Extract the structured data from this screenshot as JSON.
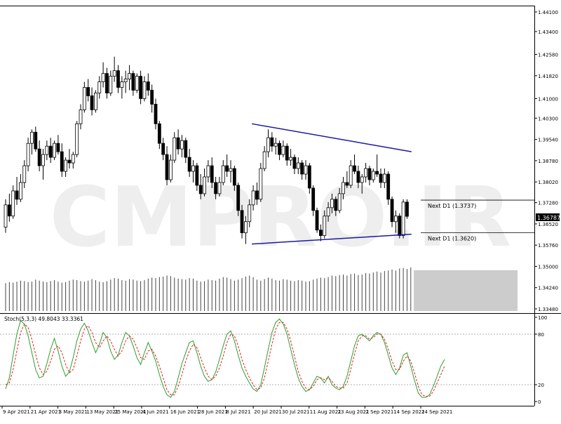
{
  "watermark": "CMPRO.IR",
  "chart_data": [
    {
      "type": "candlestick",
      "panel": "price",
      "ylim": [
        1.3376,
        1.4441
      ],
      "y_ticks": [
        "1.44100",
        "1.43400",
        "1.42580",
        "1.41820",
        "1.41000",
        "1.40300",
        "1.39540",
        "1.38780",
        "1.38020",
        "1.37280",
        "1.36520",
        "1.35760",
        "1.35000",
        "1.34240",
        "1.33480"
      ],
      "current_price_label": "1.36787",
      "annotations": [
        {
          "label": "Next D1 (1.3737)",
          "price": 1.3737
        },
        {
          "label": "Next D1 (1.3620)",
          "price": 1.362
        }
      ],
      "trendlines": [
        {
          "from": [
            "2021-07-15",
            1.401
          ],
          "to": [
            "2021-09-22",
            1.391
          ]
        },
        {
          "from": [
            "2021-07-15",
            1.358
          ],
          "to": [
            "2021-09-22",
            1.3615
          ]
        }
      ],
      "candles": [
        {
          "o": 1.364,
          "h": 1.374,
          "l": 1.362,
          "c": 1.372
        },
        {
          "o": 1.372,
          "h": 1.376,
          "l": 1.366,
          "c": 1.368
        },
        {
          "o": 1.368,
          "h": 1.379,
          "l": 1.367,
          "c": 1.377
        },
        {
          "o": 1.377,
          "h": 1.382,
          "l": 1.372,
          "c": 1.374
        },
        {
          "o": 1.374,
          "h": 1.383,
          "l": 1.373,
          "c": 1.38
        },
        {
          "o": 1.38,
          "h": 1.388,
          "l": 1.378,
          "c": 1.386
        },
        {
          "o": 1.386,
          "h": 1.396,
          "l": 1.384,
          "c": 1.394
        },
        {
          "o": 1.394,
          "h": 1.399,
          "l": 1.39,
          "c": 1.398
        },
        {
          "o": 1.398,
          "h": 1.4,
          "l": 1.391,
          "c": 1.392
        },
        {
          "o": 1.392,
          "h": 1.395,
          "l": 1.384,
          "c": 1.386
        },
        {
          "o": 1.386,
          "h": 1.392,
          "l": 1.381,
          "c": 1.39
        },
        {
          "o": 1.39,
          "h": 1.395,
          "l": 1.388,
          "c": 1.393
        },
        {
          "o": 1.393,
          "h": 1.396,
          "l": 1.387,
          "c": 1.389
        },
        {
          "o": 1.389,
          "h": 1.395,
          "l": 1.388,
          "c": 1.394
        },
        {
          "o": 1.394,
          "h": 1.397,
          "l": 1.39,
          "c": 1.391
        },
        {
          "o": 1.391,
          "h": 1.394,
          "l": 1.382,
          "c": 1.384
        },
        {
          "o": 1.384,
          "h": 1.389,
          "l": 1.382,
          "c": 1.388
        },
        {
          "o": 1.388,
          "h": 1.392,
          "l": 1.385,
          "c": 1.387
        },
        {
          "o": 1.387,
          "h": 1.391,
          "l": 1.385,
          "c": 1.39
        },
        {
          "o": 1.39,
          "h": 1.402,
          "l": 1.389,
          "c": 1.401
        },
        {
          "o": 1.401,
          "h": 1.408,
          "l": 1.399,
          "c": 1.406
        },
        {
          "o": 1.406,
          "h": 1.416,
          "l": 1.405,
          "c": 1.414
        },
        {
          "o": 1.414,
          "h": 1.417,
          "l": 1.409,
          "c": 1.411
        },
        {
          "o": 1.411,
          "h": 1.414,
          "l": 1.404,
          "c": 1.406
        },
        {
          "o": 1.406,
          "h": 1.413,
          "l": 1.405,
          "c": 1.412
        },
        {
          "o": 1.412,
          "h": 1.418,
          "l": 1.41,
          "c": 1.416
        },
        {
          "o": 1.416,
          "h": 1.423,
          "l": 1.414,
          "c": 1.419
        },
        {
          "o": 1.419,
          "h": 1.421,
          "l": 1.41,
          "c": 1.412
        },
        {
          "o": 1.412,
          "h": 1.42,
          "l": 1.411,
          "c": 1.418
        },
        {
          "o": 1.418,
          "h": 1.425,
          "l": 1.416,
          "c": 1.42
        },
        {
          "o": 1.42,
          "h": 1.422,
          "l": 1.412,
          "c": 1.414
        },
        {
          "o": 1.414,
          "h": 1.418,
          "l": 1.41,
          "c": 1.416
        },
        {
          "o": 1.416,
          "h": 1.42,
          "l": 1.412,
          "c": 1.417
        },
        {
          "o": 1.417,
          "h": 1.422,
          "l": 1.413,
          "c": 1.419
        },
        {
          "o": 1.419,
          "h": 1.42,
          "l": 1.411,
          "c": 1.413
        },
        {
          "o": 1.413,
          "h": 1.419,
          "l": 1.412,
          "c": 1.418
        },
        {
          "o": 1.418,
          "h": 1.42,
          "l": 1.408,
          "c": 1.41
        },
        {
          "o": 1.41,
          "h": 1.418,
          "l": 1.409,
          "c": 1.416
        },
        {
          "o": 1.416,
          "h": 1.419,
          "l": 1.411,
          "c": 1.413
        },
        {
          "o": 1.413,
          "h": 1.415,
          "l": 1.405,
          "c": 1.408
        },
        {
          "o": 1.408,
          "h": 1.41,
          "l": 1.399,
          "c": 1.401
        },
        {
          "o": 1.401,
          "h": 1.402,
          "l": 1.392,
          "c": 1.394
        },
        {
          "o": 1.394,
          "h": 1.396,
          "l": 1.388,
          "c": 1.39
        },
        {
          "o": 1.39,
          "h": 1.393,
          "l": 1.379,
          "c": 1.381
        },
        {
          "o": 1.381,
          "h": 1.39,
          "l": 1.38,
          "c": 1.388
        },
        {
          "o": 1.388,
          "h": 1.398,
          "l": 1.387,
          "c": 1.396
        },
        {
          "o": 1.396,
          "h": 1.399,
          "l": 1.39,
          "c": 1.392
        },
        {
          "o": 1.392,
          "h": 1.397,
          "l": 1.389,
          "c": 1.395
        },
        {
          "o": 1.395,
          "h": 1.396,
          "l": 1.387,
          "c": 1.389
        },
        {
          "o": 1.389,
          "h": 1.392,
          "l": 1.382,
          "c": 1.384
        },
        {
          "o": 1.384,
          "h": 1.388,
          "l": 1.38,
          "c": 1.386
        },
        {
          "o": 1.386,
          "h": 1.387,
          "l": 1.377,
          "c": 1.379
        },
        {
          "o": 1.379,
          "h": 1.383,
          "l": 1.374,
          "c": 1.376
        },
        {
          "o": 1.376,
          "h": 1.385,
          "l": 1.375,
          "c": 1.382
        },
        {
          "o": 1.382,
          "h": 1.388,
          "l": 1.38,
          "c": 1.386
        },
        {
          "o": 1.386,
          "h": 1.389,
          "l": 1.378,
          "c": 1.38
        },
        {
          "o": 1.38,
          "h": 1.382,
          "l": 1.374,
          "c": 1.376
        },
        {
          "o": 1.376,
          "h": 1.382,
          "l": 1.375,
          "c": 1.38
        },
        {
          "o": 1.38,
          "h": 1.388,
          "l": 1.379,
          "c": 1.386
        },
        {
          "o": 1.386,
          "h": 1.39,
          "l": 1.382,
          "c": 1.384
        },
        {
          "o": 1.384,
          "h": 1.388,
          "l": 1.38,
          "c": 1.385
        },
        {
          "o": 1.385,
          "h": 1.386,
          "l": 1.377,
          "c": 1.379
        },
        {
          "o": 1.379,
          "h": 1.38,
          "l": 1.368,
          "c": 1.37
        },
        {
          "o": 1.37,
          "h": 1.372,
          "l": 1.36,
          "c": 1.362
        },
        {
          "o": 1.362,
          "h": 1.368,
          "l": 1.358,
          "c": 1.366
        },
        {
          "o": 1.366,
          "h": 1.374,
          "l": 1.364,
          "c": 1.372
        },
        {
          "o": 1.372,
          "h": 1.379,
          "l": 1.37,
          "c": 1.377
        },
        {
          "o": 1.377,
          "h": 1.38,
          "l": 1.372,
          "c": 1.374
        },
        {
          "o": 1.374,
          "h": 1.387,
          "l": 1.373,
          "c": 1.385
        },
        {
          "o": 1.385,
          "h": 1.393,
          "l": 1.384,
          "c": 1.391
        },
        {
          "o": 1.391,
          "h": 1.399,
          "l": 1.389,
          "c": 1.396
        },
        {
          "o": 1.396,
          "h": 1.398,
          "l": 1.391,
          "c": 1.393
        },
        {
          "o": 1.393,
          "h": 1.396,
          "l": 1.39,
          "c": 1.394
        },
        {
          "o": 1.394,
          "h": 1.395,
          "l": 1.388,
          "c": 1.39
        },
        {
          "o": 1.39,
          "h": 1.395,
          "l": 1.389,
          "c": 1.393
        },
        {
          "o": 1.393,
          "h": 1.394,
          "l": 1.386,
          "c": 1.388
        },
        {
          "o": 1.388,
          "h": 1.392,
          "l": 1.386,
          "c": 1.389
        },
        {
          "o": 1.389,
          "h": 1.39,
          "l": 1.383,
          "c": 1.385
        },
        {
          "o": 1.385,
          "h": 1.389,
          "l": 1.383,
          "c": 1.387
        },
        {
          "o": 1.387,
          "h": 1.388,
          "l": 1.381,
          "c": 1.383
        },
        {
          "o": 1.383,
          "h": 1.388,
          "l": 1.381,
          "c": 1.386
        },
        {
          "o": 1.386,
          "h": 1.387,
          "l": 1.376,
          "c": 1.378
        },
        {
          "o": 1.378,
          "h": 1.379,
          "l": 1.368,
          "c": 1.37
        },
        {
          "o": 1.37,
          "h": 1.371,
          "l": 1.362,
          "c": 1.363
        },
        {
          "o": 1.363,
          "h": 1.365,
          "l": 1.359,
          "c": 1.361
        },
        {
          "o": 1.361,
          "h": 1.37,
          "l": 1.36,
          "c": 1.368
        },
        {
          "o": 1.368,
          "h": 1.373,
          "l": 1.366,
          "c": 1.371
        },
        {
          "o": 1.371,
          "h": 1.376,
          "l": 1.369,
          "c": 1.374
        },
        {
          "o": 1.374,
          "h": 1.375,
          "l": 1.368,
          "c": 1.37
        },
        {
          "o": 1.37,
          "h": 1.378,
          "l": 1.369,
          "c": 1.376
        },
        {
          "o": 1.376,
          "h": 1.382,
          "l": 1.374,
          "c": 1.38
        },
        {
          "o": 1.38,
          "h": 1.384,
          "l": 1.378,
          "c": 1.379
        },
        {
          "o": 1.379,
          "h": 1.388,
          "l": 1.378,
          "c": 1.386
        },
        {
          "o": 1.386,
          "h": 1.39,
          "l": 1.383,
          "c": 1.384
        },
        {
          "o": 1.384,
          "h": 1.386,
          "l": 1.378,
          "c": 1.38
        },
        {
          "o": 1.38,
          "h": 1.383,
          "l": 1.376,
          "c": 1.382
        },
        {
          "o": 1.382,
          "h": 1.387,
          "l": 1.38,
          "c": 1.385
        },
        {
          "o": 1.385,
          "h": 1.386,
          "l": 1.379,
          "c": 1.381
        },
        {
          "o": 1.381,
          "h": 1.385,
          "l": 1.38,
          "c": 1.384
        },
        {
          "o": 1.384,
          "h": 1.39,
          "l": 1.382,
          "c": 1.383
        },
        {
          "o": 1.383,
          "h": 1.385,
          "l": 1.378,
          "c": 1.38
        },
        {
          "o": 1.38,
          "h": 1.385,
          "l": 1.378,
          "c": 1.383
        },
        {
          "o": 1.383,
          "h": 1.384,
          "l": 1.372,
          "c": 1.374
        },
        {
          "o": 1.374,
          "h": 1.375,
          "l": 1.364,
          "c": 1.366
        },
        {
          "o": 1.366,
          "h": 1.37,
          "l": 1.362,
          "c": 1.368
        },
        {
          "o": 1.368,
          "h": 1.369,
          "l": 1.36,
          "c": 1.361
        },
        {
          "o": 1.361,
          "h": 1.374,
          "l": 1.36,
          "c": 1.373
        },
        {
          "o": 1.373,
          "h": 1.374,
          "l": 1.367,
          "c": 1.3679
        }
      ]
    },
    {
      "type": "bar",
      "panel": "volume",
      "values": [
        55,
        57,
        56,
        58,
        60,
        59,
        57,
        58,
        62,
        60,
        58,
        57,
        59,
        61,
        58,
        56,
        57,
        60,
        62,
        61,
        59,
        58,
        60,
        63,
        61,
        58,
        57,
        59,
        62,
        65,
        64,
        61,
        60,
        63,
        62,
        60,
        59,
        61,
        64,
        66,
        65,
        67,
        68,
        70,
        69,
        66,
        64,
        63,
        62,
        65,
        64,
        60,
        58,
        59,
        62,
        61,
        60,
        64,
        67,
        66,
        63,
        60,
        62,
        65,
        68,
        70,
        67,
        62,
        60,
        63,
        66,
        64,
        61,
        60,
        63,
        62,
        60,
        59,
        61,
        60,
        58,
        59,
        62,
        64,
        66,
        65,
        67,
        70,
        69,
        71,
        72,
        70,
        73,
        74,
        71,
        72,
        75,
        74,
        76,
        78,
        76,
        79,
        80,
        82,
        80,
        84,
        85,
        83,
        86,
        48
      ]
    },
    {
      "type": "line",
      "panel": "stochastic",
      "title": "Stoch(5,3,3) 49.8043 33.3361",
      "ylim": [
        0,
        100
      ],
      "y_ticks": [
        "100",
        "80",
        "20",
        "0"
      ],
      "x_tick_labels": [
        "9 Apr 2021",
        "21 Apr 2021",
        "3 May 2021",
        "13 May 2021",
        "25 May 2021",
        "4 Jun 2021",
        "16 Jun 2021",
        "28 Jun 2021",
        "8 Jul 2021",
        "20 Jul 2021",
        "30 Jul 2021",
        "11 Aug 2021",
        "23 Aug 2021",
        "2 Sep 2021",
        "14 Sep 2021",
        "24 Sep 2021"
      ],
      "series": [
        {
          "color": "#2e9e2e",
          "values": [
            15,
            28,
            55,
            80,
            96,
            92,
            78,
            58,
            38,
            28,
            30,
            45,
            62,
            75,
            60,
            42,
            30,
            35,
            52,
            72,
            86,
            93,
            84,
            70,
            58,
            68,
            82,
            76,
            60,
            50,
            55,
            70,
            82,
            78,
            66,
            52,
            44,
            58,
            70,
            60,
            48,
            32,
            18,
            8,
            5,
            12,
            28,
            45,
            58,
            70,
            72,
            58,
            42,
            30,
            24,
            26,
            35,
            50,
            66,
            80,
            84,
            72,
            55,
            40,
            30,
            22,
            15,
            12,
            20,
            40,
            62,
            82,
            94,
            98,
            92,
            80,
            62,
            44,
            28,
            18,
            12,
            14,
            22,
            30,
            28,
            22,
            30,
            20,
            16,
            14,
            18,
            30,
            48,
            66,
            78,
            80,
            76,
            72,
            78,
            82,
            80,
            70,
            55,
            40,
            32,
            40,
            55,
            58,
            42,
            25,
            10,
            5,
            5,
            8,
            18,
            30,
            42,
            50
          ]
        },
        {
          "color": "#e02020",
          "dashed": true,
          "values": [
            20,
            22,
            38,
            60,
            82,
            92,
            88,
            74,
            56,
            40,
            32,
            36,
            48,
            62,
            66,
            58,
            44,
            34,
            38,
            54,
            72,
            86,
            90,
            82,
            70,
            64,
            72,
            78,
            72,
            62,
            54,
            60,
            72,
            78,
            74,
            64,
            52,
            50,
            60,
            62,
            54,
            42,
            28,
            14,
            8,
            8,
            18,
            32,
            48,
            60,
            68,
            64,
            52,
            40,
            30,
            26,
            30,
            40,
            54,
            70,
            80,
            78,
            66,
            50,
            38,
            28,
            20,
            14,
            16,
            28,
            48,
            68,
            86,
            94,
            94,
            86,
            72,
            54,
            36,
            24,
            16,
            14,
            18,
            26,
            28,
            26,
            28,
            24,
            18,
            16,
            16,
            22,
            38,
            56,
            72,
            78,
            78,
            74,
            76,
            80,
            80,
            74,
            62,
            48,
            38,
            38,
            48,
            54,
            48,
            34,
            18,
            8,
            6,
            6,
            12,
            22,
            32,
            42
          ]
        }
      ]
    }
  ]
}
